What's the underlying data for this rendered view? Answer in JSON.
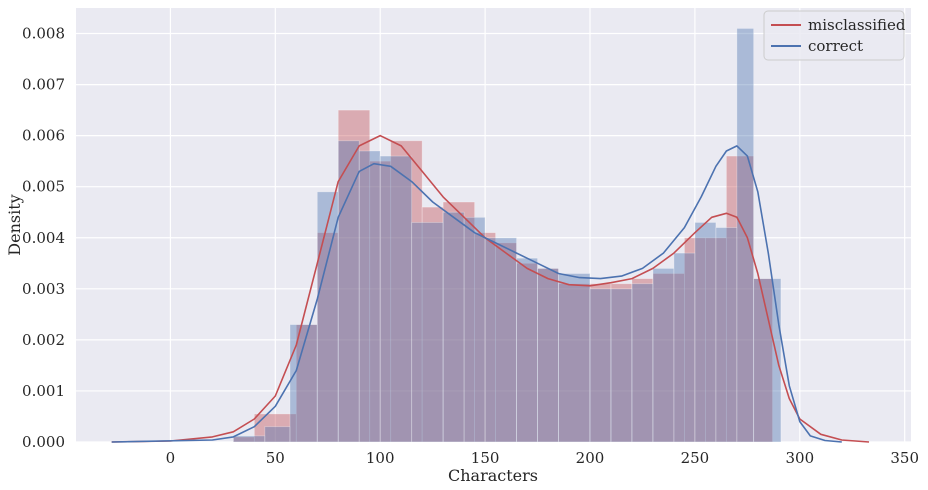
{
  "chart_data": {
    "type": "histogram-kde",
    "xlabel": "Characters",
    "ylabel": "Density",
    "xlim": [
      -45,
      353
    ],
    "ylim": [
      0,
      0.0085
    ],
    "xticks": [
      0,
      50,
      100,
      150,
      200,
      250,
      300,
      350
    ],
    "yticks": [
      0.0,
      0.001,
      0.002,
      0.003,
      0.004,
      0.005,
      0.006,
      0.007,
      0.008
    ],
    "ytick_labels": [
      "0.000",
      "0.001",
      "0.002",
      "0.003",
      "0.004",
      "0.005",
      "0.006",
      "0.007",
      "0.008"
    ],
    "grid": true,
    "legend_position": "top-right",
    "colors": {
      "plot_bg": "#eaeaf2",
      "grid": "#ffffff",
      "misclassified": "#c44e52",
      "correct": "#4c72b0"
    },
    "series": [
      {
        "name": "misclassified",
        "color": "#c44e52",
        "hist_bins": [
          [
            30,
            40,
            0.0001
          ],
          [
            40,
            60,
            0.00055
          ],
          [
            60,
            70,
            0.0023
          ],
          [
            70,
            80,
            0.0041
          ],
          [
            80,
            95,
            0.0065
          ],
          [
            95,
            105,
            0.0055
          ],
          [
            105,
            120,
            0.0059
          ],
          [
            120,
            130,
            0.0046
          ],
          [
            130,
            145,
            0.0047
          ],
          [
            145,
            155,
            0.0041
          ],
          [
            155,
            165,
            0.0039
          ],
          [
            165,
            175,
            0.0035
          ],
          [
            175,
            185,
            0.0034
          ],
          [
            185,
            200,
            0.0031
          ],
          [
            200,
            210,
            0.0031
          ],
          [
            210,
            220,
            0.0031
          ],
          [
            220,
            230,
            0.0032
          ],
          [
            230,
            245,
            0.0033
          ],
          [
            245,
            255,
            0.004
          ],
          [
            255,
            265,
            0.004
          ],
          [
            265,
            278,
            0.0056
          ],
          [
            278,
            287,
            0.0032
          ]
        ],
        "kde": [
          [
            -28,
            0.0
          ],
          [
            0,
            2e-05
          ],
          [
            20,
            0.0001
          ],
          [
            30,
            0.0002
          ],
          [
            40,
            0.00045
          ],
          [
            50,
            0.0009
          ],
          [
            60,
            0.0019
          ],
          [
            70,
            0.0035
          ],
          [
            80,
            0.0051
          ],
          [
            90,
            0.0058
          ],
          [
            100,
            0.006
          ],
          [
            110,
            0.0058
          ],
          [
            120,
            0.0053
          ],
          [
            130,
            0.0048
          ],
          [
            140,
            0.0044
          ],
          [
            150,
            0.004
          ],
          [
            160,
            0.0037
          ],
          [
            170,
            0.0034
          ],
          [
            180,
            0.0032
          ],
          [
            190,
            0.00308
          ],
          [
            200,
            0.00306
          ],
          [
            210,
            0.00312
          ],
          [
            220,
            0.0032
          ],
          [
            230,
            0.0034
          ],
          [
            240,
            0.0037
          ],
          [
            250,
            0.0041
          ],
          [
            258,
            0.0044
          ],
          [
            265,
            0.00448
          ],
          [
            270,
            0.0044
          ],
          [
            275,
            0.004
          ],
          [
            280,
            0.0033
          ],
          [
            285,
            0.0024
          ],
          [
            290,
            0.0015
          ],
          [
            295,
            0.00085
          ],
          [
            300,
            0.00045
          ],
          [
            310,
            0.00015
          ],
          [
            320,
            4e-05
          ],
          [
            333,
            0.0
          ]
        ]
      },
      {
        "name": "correct",
        "color": "#4c72b0",
        "hist_bins": [
          [
            30,
            45,
            0.00012
          ],
          [
            45,
            57,
            0.0003
          ],
          [
            57,
            70,
            0.0023
          ],
          [
            70,
            80,
            0.0049
          ],
          [
            80,
            90,
            0.0059
          ],
          [
            90,
            100,
            0.0057
          ],
          [
            100,
            115,
            0.0056
          ],
          [
            115,
            130,
            0.0043
          ],
          [
            130,
            140,
            0.0045
          ],
          [
            140,
            150,
            0.0044
          ],
          [
            150,
            165,
            0.004
          ],
          [
            165,
            175,
            0.0036
          ],
          [
            175,
            185,
            0.0034
          ],
          [
            185,
            200,
            0.0033
          ],
          [
            200,
            210,
            0.003
          ],
          [
            210,
            220,
            0.003
          ],
          [
            220,
            230,
            0.0031
          ],
          [
            230,
            240,
            0.0034
          ],
          [
            240,
            250,
            0.0037
          ],
          [
            250,
            260,
            0.0043
          ],
          [
            260,
            270,
            0.0042
          ],
          [
            270,
            278,
            0.0081
          ],
          [
            278,
            291,
            0.0032
          ]
        ],
        "kde": [
          [
            -28,
            0.0
          ],
          [
            20,
            4e-05
          ],
          [
            30,
            0.0001
          ],
          [
            40,
            0.0003
          ],
          [
            50,
            0.0007
          ],
          [
            60,
            0.0014
          ],
          [
            70,
            0.0028
          ],
          [
            80,
            0.0044
          ],
          [
            90,
            0.0053
          ],
          [
            97,
            0.00545
          ],
          [
            105,
            0.0054
          ],
          [
            115,
            0.0051
          ],
          [
            125,
            0.0047
          ],
          [
            135,
            0.0044
          ],
          [
            145,
            0.0041
          ],
          [
            155,
            0.0039
          ],
          [
            165,
            0.0037
          ],
          [
            175,
            0.0035
          ],
          [
            185,
            0.0033
          ],
          [
            195,
            0.00322
          ],
          [
            205,
            0.0032
          ],
          [
            215,
            0.00325
          ],
          [
            225,
            0.0034
          ],
          [
            235,
            0.0037
          ],
          [
            245,
            0.0042
          ],
          [
            253,
            0.0048
          ],
          [
            260,
            0.0054
          ],
          [
            265,
            0.0057
          ],
          [
            270,
            0.0058
          ],
          [
            275,
            0.0056
          ],
          [
            280,
            0.0049
          ],
          [
            285,
            0.0037
          ],
          [
            290,
            0.0023
          ],
          [
            295,
            0.0011
          ],
          [
            300,
            0.0004
          ],
          [
            305,
            0.00012
          ],
          [
            312,
            3e-05
          ],
          [
            320,
            0.0
          ]
        ]
      }
    ]
  }
}
